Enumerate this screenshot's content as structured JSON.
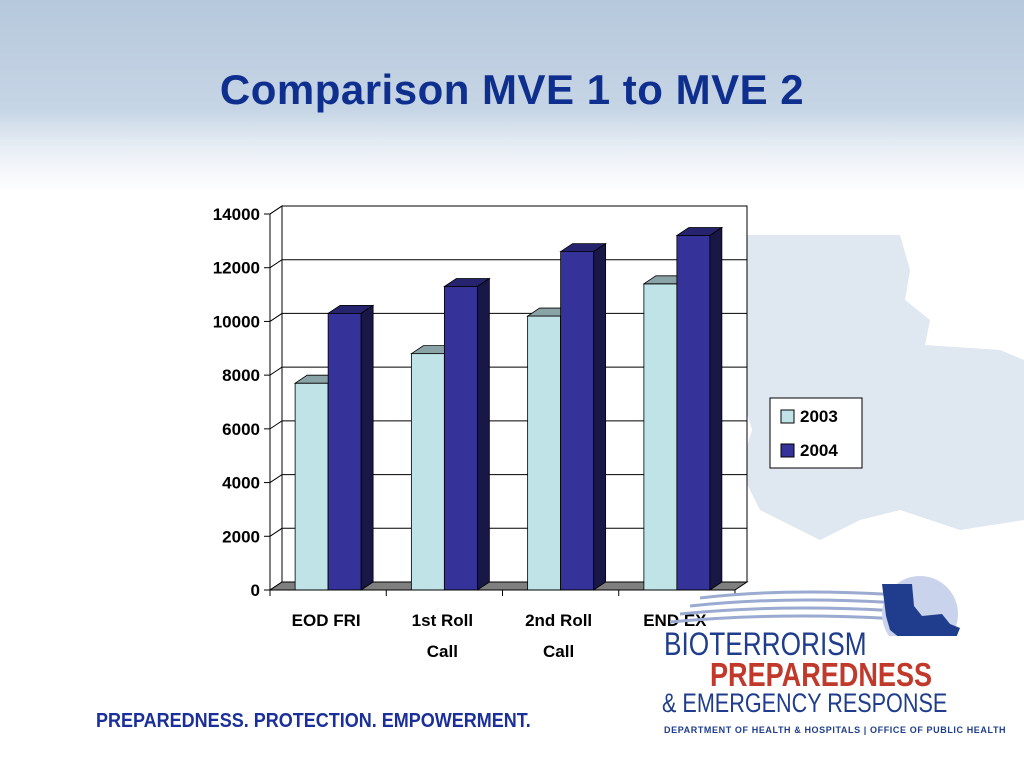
{
  "slide": {
    "title": "Comparison MVE 1 to MVE 2",
    "tagline": "PREPAREDNESS. PROTECTION. EMPOWERMENT."
  },
  "logo": {
    "line1": "BIOTERRORISM",
    "line2": "PREPAREDNESS",
    "line3": "& EMERGENCY RESPONSE",
    "line4": "DEPARTMENT OF HEALTH & HOSPITALS  |  OFFICE OF PUBLIC HEALTH"
  },
  "colors": {
    "title": "#0f2f8f",
    "series_2003": "#bfe3e6",
    "series_2004": "#35329a",
    "tagline": "#1b2f9a",
    "logo_blue": "#1f3d8c",
    "logo_red": "#c0392b"
  },
  "chart_data": {
    "type": "bar",
    "style": "3d-clustered-column",
    "categories": [
      [
        "EOD FRI"
      ],
      [
        "1st Roll",
        "Call"
      ],
      [
        "2nd Roll",
        "Call"
      ],
      [
        "END EX"
      ]
    ],
    "series": [
      {
        "name": "2003",
        "values": [
          7700,
          8800,
          10200,
          11400
        ],
        "color": "#bfe3e6"
      },
      {
        "name": "2004",
        "values": [
          10300,
          11300,
          12600,
          13200
        ],
        "color": "#35329a"
      }
    ],
    "yticks": [
      "0",
      "2000",
      "4000",
      "6000",
      "8000",
      "10000",
      "12000",
      "14000"
    ],
    "ylim": [
      0,
      14000
    ],
    "grid": true,
    "legend_position": "right"
  }
}
